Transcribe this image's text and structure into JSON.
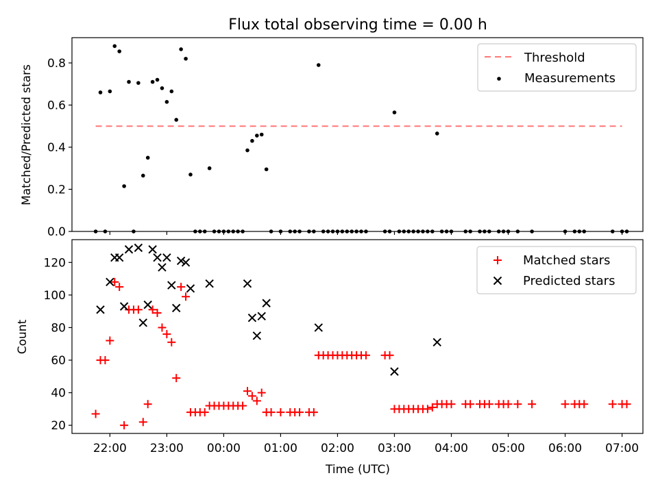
{
  "title": "Flux total observing time = 0.00 h",
  "xlabel": "Time (UTC)",
  "x_ticks": [
    "22:00",
    "23:00",
    "00:00",
    "01:00",
    "02:00",
    "03:00",
    "04:00",
    "05:00",
    "06:00",
    "07:00"
  ],
  "colors": {
    "threshold": "#ff7777",
    "measurements": "#000000",
    "matched": "#ff0000",
    "predicted": "#000000"
  },
  "chart_data": [
    {
      "type": "scatter",
      "ylabel": "Matched/Predicted stars",
      "ylim": [
        0,
        0.92
      ],
      "y_ticks": [
        0.0,
        0.2,
        0.4,
        0.6,
        0.8
      ],
      "legend_position": "top-right",
      "threshold": {
        "name": "Threshold",
        "value": 0.5,
        "x": [
          "21:45",
          "07:00"
        ]
      },
      "series": [
        {
          "name": "Measurements",
          "points": [
            [
              "21:45",
              0.0
            ],
            [
              "21:50",
              0.66
            ],
            [
              "21:55",
              0.0
            ],
            [
              "22:00",
              0.665
            ],
            [
              "22:05",
              0.88
            ],
            [
              "22:10",
              0.855
            ],
            [
              "22:15",
              0.215
            ],
            [
              "22:20",
              0.71
            ],
            [
              "22:25",
              0.0
            ],
            [
              "22:30",
              0.705
            ],
            [
              "22:35",
              0.265
            ],
            [
              "22:40",
              0.35
            ],
            [
              "22:45",
              0.71
            ],
            [
              "22:50",
              0.72
            ],
            [
              "22:55",
              0.68
            ],
            [
              "23:00",
              0.615
            ],
            [
              "23:05",
              0.665
            ],
            [
              "23:10",
              0.53
            ],
            [
              "23:15",
              0.865
            ],
            [
              "23:20",
              0.82
            ],
            [
              "23:25",
              0.27
            ],
            [
              "23:30",
              0.0
            ],
            [
              "23:35",
              0.0
            ],
            [
              "23:40",
              0.0
            ],
            [
              "23:45",
              0.3
            ],
            [
              "23:50",
              0.0
            ],
            [
              "23:55",
              0.0
            ],
            [
              "00:00",
              0.0
            ],
            [
              "00:05",
              0.0
            ],
            [
              "00:10",
              0.0
            ],
            [
              "00:15",
              0.0
            ],
            [
              "00:20",
              0.0
            ],
            [
              "00:25",
              0.385
            ],
            [
              "00:30",
              0.43
            ],
            [
              "00:35",
              0.455
            ],
            [
              "00:40",
              0.46
            ],
            [
              "00:45",
              0.295
            ],
            [
              "00:50",
              0.0
            ],
            [
              "01:00",
              0.0
            ],
            [
              "01:10",
              0.0
            ],
            [
              "01:15",
              0.0
            ],
            [
              "01:20",
              0.0
            ],
            [
              "01:30",
              0.0
            ],
            [
              "01:35",
              0.0
            ],
            [
              "01:40",
              0.79
            ],
            [
              "01:45",
              0.0
            ],
            [
              "01:50",
              0.0
            ],
            [
              "01:55",
              0.0
            ],
            [
              "02:00",
              0.0
            ],
            [
              "02:05",
              0.0
            ],
            [
              "02:10",
              0.0
            ],
            [
              "02:15",
              0.0
            ],
            [
              "02:20",
              0.0
            ],
            [
              "02:25",
              0.0
            ],
            [
              "02:30",
              0.0
            ],
            [
              "02:50",
              0.0
            ],
            [
              "02:55",
              0.0
            ],
            [
              "03:00",
              0.565
            ],
            [
              "03:05",
              0.0
            ],
            [
              "03:10",
              0.0
            ],
            [
              "03:15",
              0.0
            ],
            [
              "03:20",
              0.0
            ],
            [
              "03:25",
              0.0
            ],
            [
              "03:30",
              0.0
            ],
            [
              "03:35",
              0.0
            ],
            [
              "03:40",
              0.0
            ],
            [
              "03:45",
              0.465
            ],
            [
              "03:50",
              0.0
            ],
            [
              "03:55",
              0.0
            ],
            [
              "04:00",
              0.0
            ],
            [
              "04:15",
              0.0
            ],
            [
              "04:20",
              0.0
            ],
            [
              "04:30",
              0.0
            ],
            [
              "04:35",
              0.0
            ],
            [
              "04:40",
              0.0
            ],
            [
              "04:50",
              0.0
            ],
            [
              "04:55",
              0.0
            ],
            [
              "05:00",
              0.0
            ],
            [
              "05:10",
              0.0
            ],
            [
              "05:25",
              0.0
            ],
            [
              "06:00",
              0.0
            ],
            [
              "06:10",
              0.0
            ],
            [
              "06:15",
              0.0
            ],
            [
              "06:20",
              0.0
            ],
            [
              "06:50",
              0.0
            ],
            [
              "07:00",
              0.0
            ],
            [
              "07:05",
              0.0
            ]
          ]
        }
      ]
    },
    {
      "type": "scatter",
      "ylabel": "Count",
      "ylim": [
        15,
        134
      ],
      "y_ticks": [
        20,
        40,
        60,
        80,
        100,
        120
      ],
      "legend_position": "top-right",
      "series": [
        {
          "name": "Matched stars",
          "points": [
            [
              "21:45",
              27
            ],
            [
              "21:50",
              60
            ],
            [
              "21:55",
              60
            ],
            [
              "22:00",
              72
            ],
            [
              "22:05",
              108
            ],
            [
              "22:10",
              105
            ],
            [
              "22:15",
              20
            ],
            [
              "22:20",
              91
            ],
            [
              "22:25",
              91
            ],
            [
              "22:30",
              91
            ],
            [
              "22:35",
              22
            ],
            [
              "22:40",
              33
            ],
            [
              "22:45",
              91
            ],
            [
              "22:50",
              89
            ],
            [
              "22:55",
              80
            ],
            [
              "23:00",
              76
            ],
            [
              "23:05",
              71
            ],
            [
              "23:10",
              49
            ],
            [
              "23:15",
              105
            ],
            [
              "23:20",
              99
            ],
            [
              "23:25",
              28
            ],
            [
              "23:30",
              28
            ],
            [
              "23:35",
              28
            ],
            [
              "23:40",
              28
            ],
            [
              "23:45",
              32
            ],
            [
              "23:50",
              32
            ],
            [
              "23:55",
              32
            ],
            [
              "00:00",
              32
            ],
            [
              "00:05",
              32
            ],
            [
              "00:10",
              32
            ],
            [
              "00:15",
              32
            ],
            [
              "00:20",
              32
            ],
            [
              "00:25",
              41
            ],
            [
              "00:30",
              38
            ],
            [
              "00:35",
              35
            ],
            [
              "00:40",
              40
            ],
            [
              "00:45",
              28
            ],
            [
              "00:50",
              28
            ],
            [
              "01:00",
              28
            ],
            [
              "01:10",
              28
            ],
            [
              "01:15",
              28
            ],
            [
              "01:20",
              28
            ],
            [
              "01:30",
              28
            ],
            [
              "01:35",
              28
            ],
            [
              "01:40",
              63
            ],
            [
              "01:45",
              63
            ],
            [
              "01:50",
              63
            ],
            [
              "01:55",
              63
            ],
            [
              "02:00",
              63
            ],
            [
              "02:05",
              63
            ],
            [
              "02:10",
              63
            ],
            [
              "02:15",
              63
            ],
            [
              "02:20",
              63
            ],
            [
              "02:25",
              63
            ],
            [
              "02:30",
              63
            ],
            [
              "02:50",
              63
            ],
            [
              "02:55",
              63
            ],
            [
              "03:00",
              30
            ],
            [
              "03:05",
              30
            ],
            [
              "03:10",
              30
            ],
            [
              "03:15",
              30
            ],
            [
              "03:20",
              30
            ],
            [
              "03:25",
              30
            ],
            [
              "03:30",
              30
            ],
            [
              "03:35",
              30
            ],
            [
              "03:40",
              31
            ],
            [
              "03:45",
              33
            ],
            [
              "03:50",
              33
            ],
            [
              "03:55",
              33
            ],
            [
              "04:00",
              33
            ],
            [
              "04:15",
              33
            ],
            [
              "04:20",
              33
            ],
            [
              "04:30",
              33
            ],
            [
              "04:35",
              33
            ],
            [
              "04:40",
              33
            ],
            [
              "04:50",
              33
            ],
            [
              "04:55",
              33
            ],
            [
              "05:00",
              33
            ],
            [
              "05:10",
              33
            ],
            [
              "05:25",
              33
            ],
            [
              "06:00",
              33
            ],
            [
              "06:10",
              33
            ],
            [
              "06:15",
              33
            ],
            [
              "06:20",
              33
            ],
            [
              "06:50",
              33
            ],
            [
              "07:00",
              33
            ],
            [
              "07:05",
              33
            ]
          ]
        },
        {
          "name": "Predicted stars",
          "points": [
            [
              "21:50",
              91
            ],
            [
              "22:00",
              108
            ],
            [
              "22:05",
              123
            ],
            [
              "22:10",
              123
            ],
            [
              "22:15",
              93
            ],
            [
              "22:20",
              128
            ],
            [
              "22:30",
              129
            ],
            [
              "22:35",
              83
            ],
            [
              "22:40",
              94
            ],
            [
              "22:45",
              128
            ],
            [
              "22:50",
              123
            ],
            [
              "22:55",
              117
            ],
            [
              "23:00",
              123
            ],
            [
              "23:05",
              106
            ],
            [
              "23:10",
              92
            ],
            [
              "23:15",
              121
            ],
            [
              "23:20",
              120
            ],
            [
              "23:25",
              104
            ],
            [
              "23:45",
              107
            ],
            [
              "00:25",
              107
            ],
            [
              "00:30",
              86
            ],
            [
              "00:35",
              75
            ],
            [
              "00:40",
              87
            ],
            [
              "00:45",
              95
            ],
            [
              "01:40",
              80
            ],
            [
              "03:00",
              53
            ],
            [
              "03:45",
              71
            ]
          ]
        }
      ]
    }
  ]
}
